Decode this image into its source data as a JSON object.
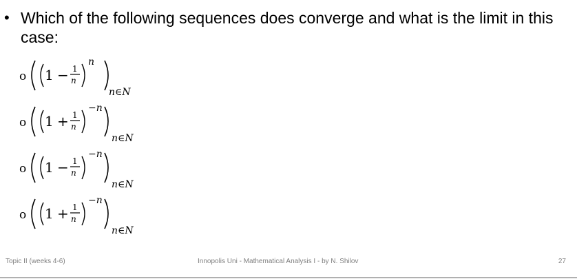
{
  "question": {
    "bullet": "•",
    "text": "Which of the following sequences does converge and what is the limit in this case:"
  },
  "options": [
    {
      "marker": "o",
      "sign": "−",
      "exponent": "n",
      "subscript": "n∈N",
      "fraction_num": "1",
      "fraction_den": "n",
      "one": "1"
    },
    {
      "marker": "o",
      "sign": "+",
      "exponent": "−n",
      "subscript": "n∈N",
      "fraction_num": "1",
      "fraction_den": "n",
      "one": "1"
    },
    {
      "marker": "o",
      "sign": "−",
      "exponent": "−n",
      "subscript": "n∈N",
      "fraction_num": "1",
      "fraction_den": "n",
      "one": "1"
    },
    {
      "marker": "o",
      "sign": "+",
      "exponent": "−n",
      "subscript": "n∈N",
      "fraction_num": "1",
      "fraction_den": "n",
      "one": "1"
    }
  ],
  "footer": {
    "left": "Topic II (weeks 4-6)",
    "center": "Innopolis Uni - Mathematical Analysis I - by N. Shilov",
    "page_number": "27"
  }
}
